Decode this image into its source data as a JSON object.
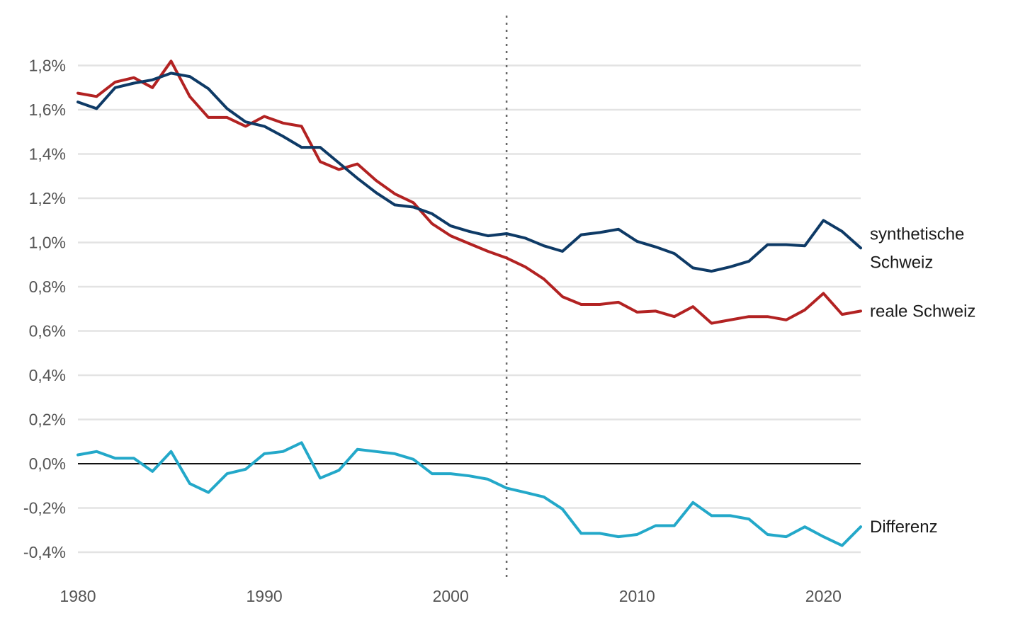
{
  "chart_data": {
    "type": "line",
    "title": "",
    "xlabel": "",
    "ylabel": "",
    "xlim": [
      1980,
      2022
    ],
    "ylim": [
      -0.5,
      1.95
    ],
    "grid": true,
    "legend": "inline-right",
    "x_ticks": [
      {
        "value": 1980,
        "label": "1980"
      },
      {
        "value": 1990,
        "label": "1990"
      },
      {
        "value": 2000,
        "label": "2000"
      },
      {
        "value": 2010,
        "label": "2010"
      },
      {
        "value": 2020,
        "label": "2020"
      }
    ],
    "y_ticks": [
      {
        "value": 1.8,
        "label": "1,8%"
      },
      {
        "value": 1.6,
        "label": "1,6%"
      },
      {
        "value": 1.4,
        "label": "1,4%"
      },
      {
        "value": 1.2,
        "label": "1,2%"
      },
      {
        "value": 1.0,
        "label": "1,0%"
      },
      {
        "value": 0.8,
        "label": "0,8%"
      },
      {
        "value": 0.6,
        "label": "0,6%"
      },
      {
        "value": 0.4,
        "label": "0,4%"
      },
      {
        "value": 0.2,
        "label": "0,2%"
      },
      {
        "value": 0.0,
        "label": "0,0%"
      },
      {
        "value": -0.2,
        "label": "-0,2%"
      },
      {
        "value": -0.4,
        "label": "-0,4%"
      }
    ],
    "reference_line_x": 2003,
    "x": [
      1980,
      1981,
      1982,
      1983,
      1984,
      1985,
      1986,
      1987,
      1988,
      1989,
      1990,
      1991,
      1992,
      1993,
      1994,
      1995,
      1996,
      1997,
      1998,
      1999,
      2000,
      2001,
      2002,
      2003,
      2004,
      2005,
      2006,
      2007,
      2008,
      2009,
      2010,
      2011,
      2012,
      2013,
      2014,
      2015,
      2016,
      2017,
      2018,
      2019,
      2020,
      2021,
      2022
    ],
    "series": [
      {
        "name": "synthetische Schweiz",
        "label_lines": [
          "synthetische",
          "Schweiz"
        ],
        "color": "#0e3a66",
        "values": [
          1.635,
          1.605,
          1.7,
          1.72,
          1.735,
          1.765,
          1.75,
          1.695,
          1.605,
          1.545,
          1.525,
          1.48,
          1.43,
          1.43,
          1.36,
          1.29,
          1.225,
          1.17,
          1.16,
          1.13,
          1.075,
          1.05,
          1.03,
          1.04,
          1.02,
          0.985,
          0.96,
          1.035,
          1.045,
          1.06,
          1.005,
          0.98,
          0.95,
          0.885,
          0.87,
          0.89,
          0.915,
          0.99,
          0.99,
          0.985,
          1.1,
          1.05,
          0.975
        ]
      },
      {
        "name": "reale Schweiz",
        "label_lines": [
          "reale Schweiz"
        ],
        "color": "#b22222",
        "values": [
          1.675,
          1.66,
          1.725,
          1.745,
          1.7,
          1.82,
          1.66,
          1.565,
          1.565,
          1.525,
          1.57,
          1.54,
          1.525,
          1.365,
          1.33,
          1.355,
          1.28,
          1.22,
          1.18,
          1.085,
          1.03,
          0.995,
          0.96,
          0.93,
          0.89,
          0.835,
          0.755,
          0.72,
          0.72,
          0.73,
          0.685,
          0.69,
          0.665,
          0.71,
          0.635,
          0.65,
          0.665,
          0.665,
          0.65,
          0.695,
          0.77,
          0.675,
          0.69
        ]
      },
      {
        "name": "Differenz",
        "label_lines": [
          "Differenz"
        ],
        "color": "#23a8c9",
        "values": [
          0.04,
          0.055,
          0.025,
          0.025,
          -0.035,
          0.055,
          -0.09,
          -0.13,
          -0.045,
          -0.025,
          0.045,
          0.055,
          0.095,
          -0.065,
          -0.03,
          0.065,
          0.055,
          0.045,
          0.02,
          -0.045,
          -0.045,
          -0.055,
          -0.07,
          -0.11,
          -0.13,
          -0.15,
          -0.205,
          -0.315,
          -0.315,
          -0.33,
          -0.32,
          -0.28,
          -0.28,
          -0.175,
          -0.235,
          -0.235,
          -0.25,
          -0.32,
          -0.33,
          -0.285,
          -0.33,
          -0.37,
          -0.285
        ]
      }
    ]
  }
}
